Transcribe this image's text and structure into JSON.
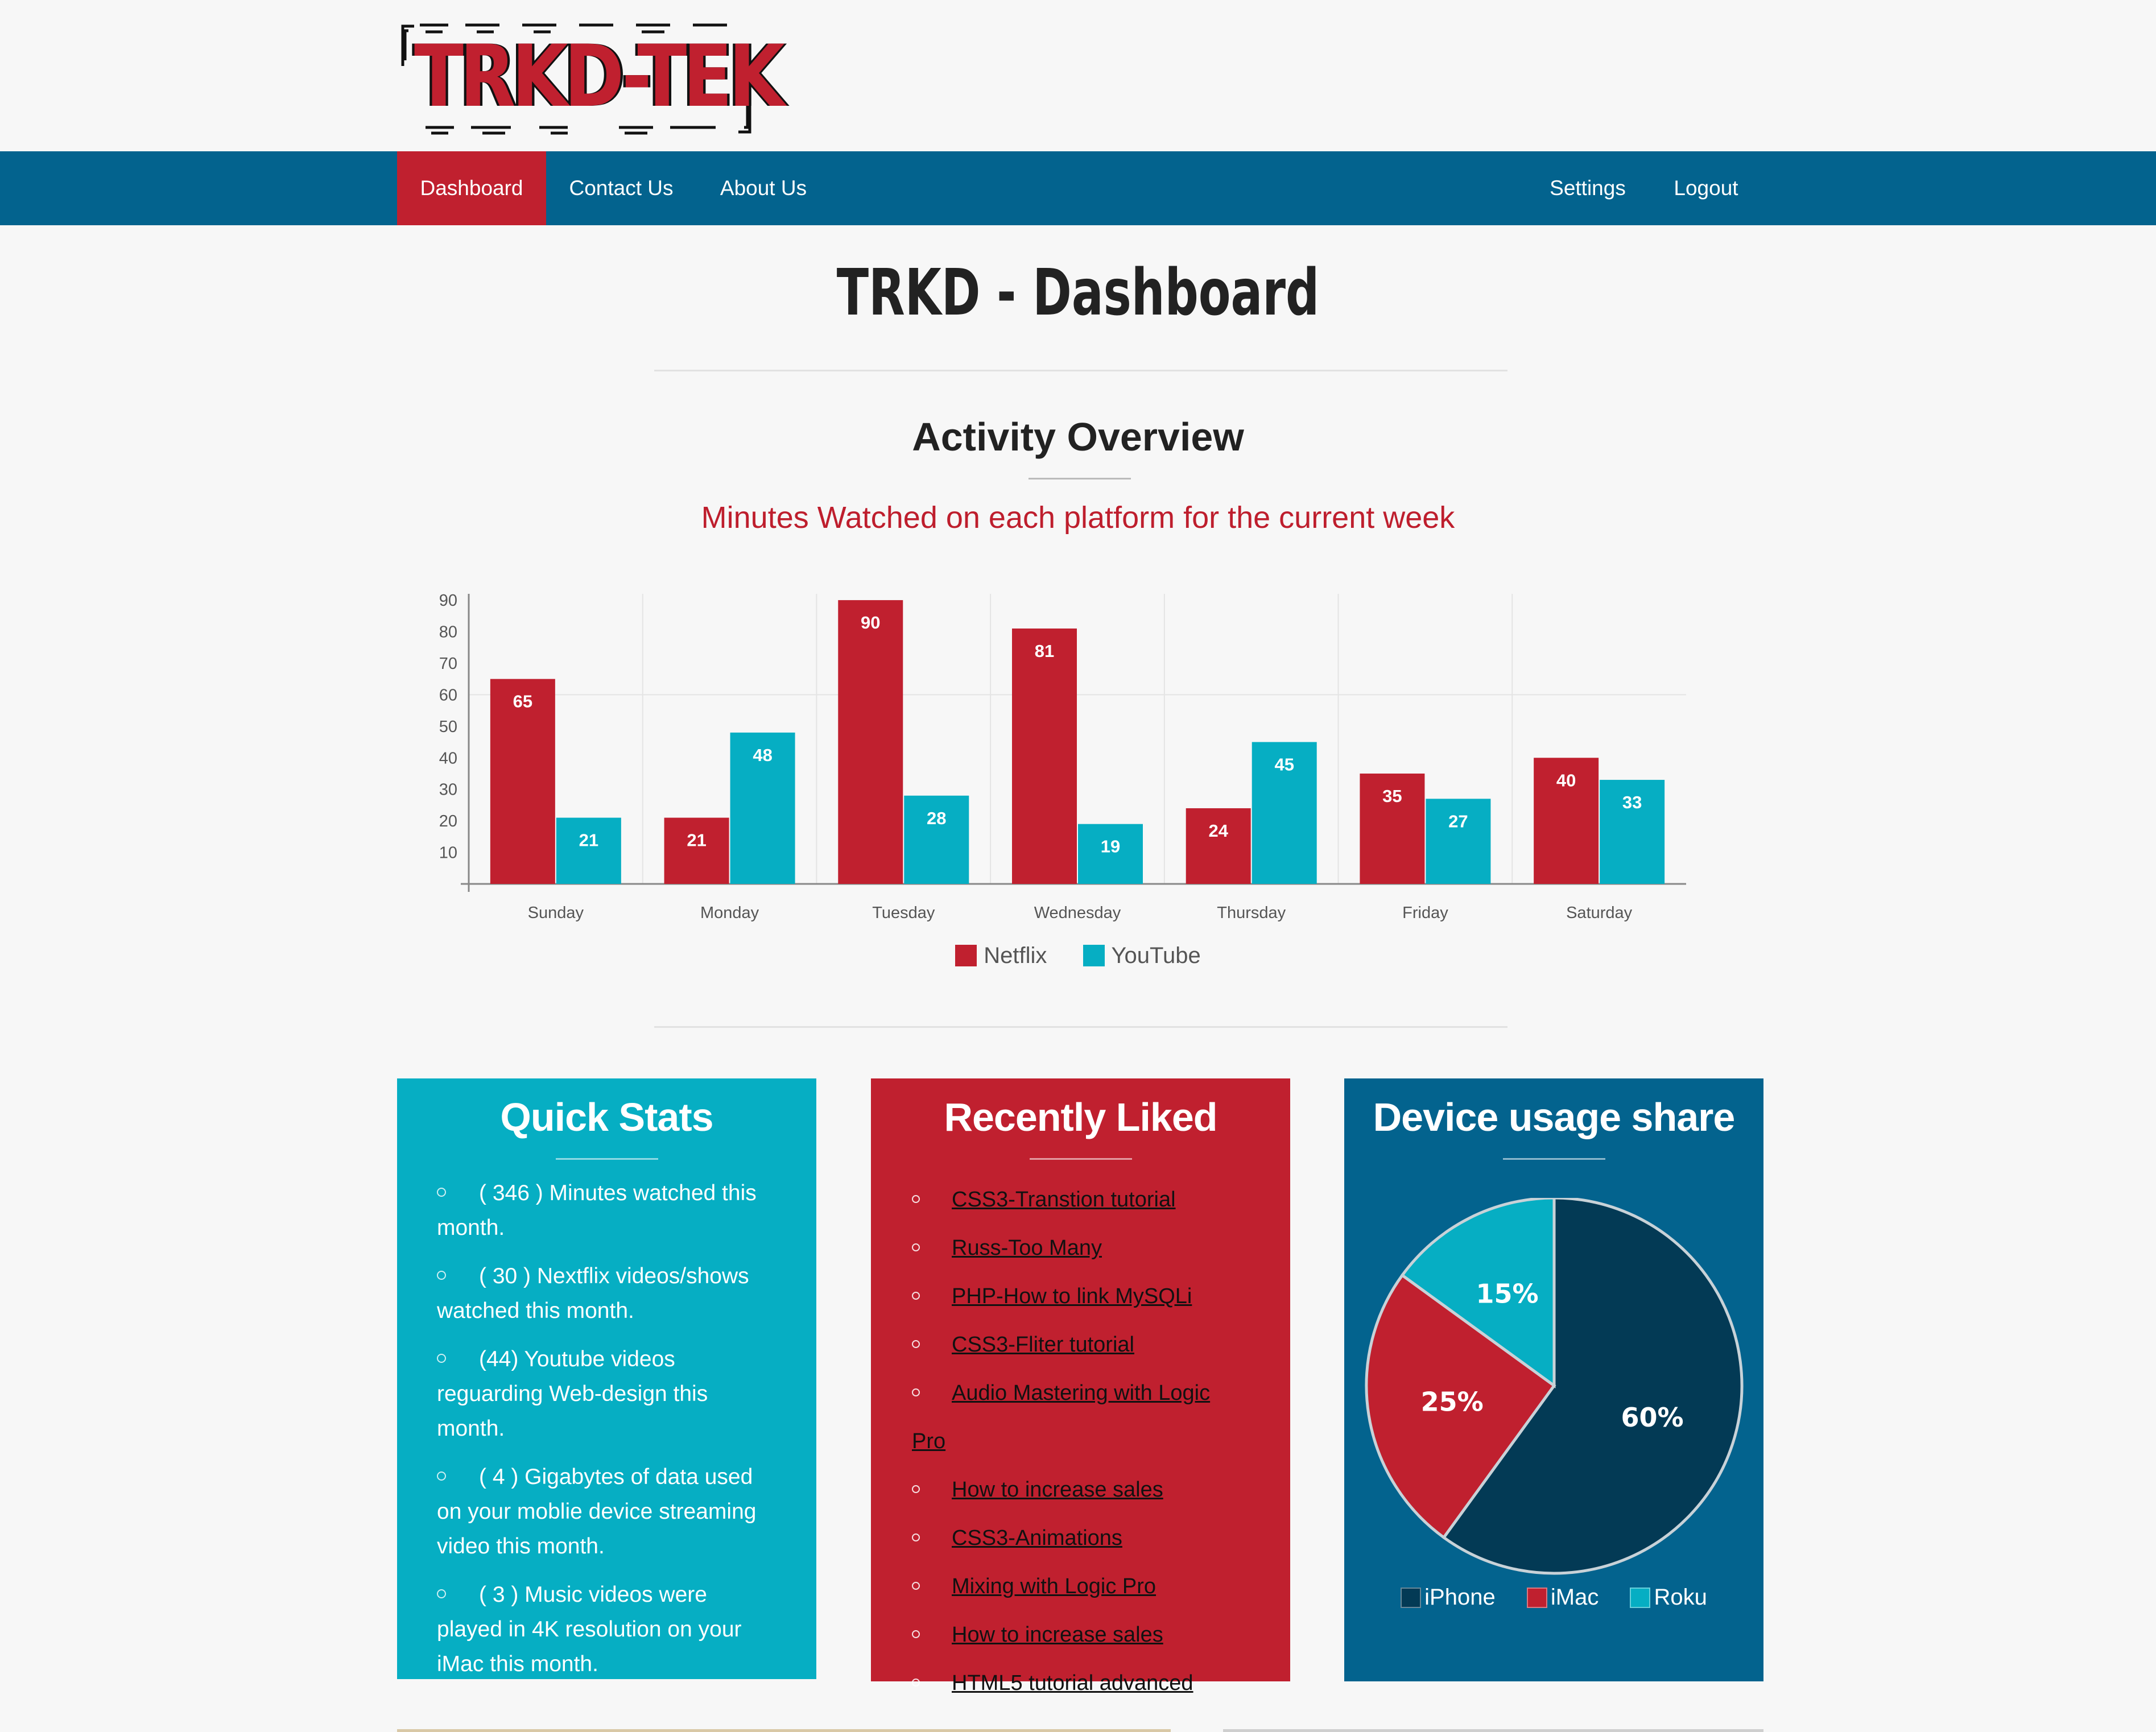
{
  "brand": {
    "logo_text": "TRKD-TEK"
  },
  "nav": {
    "left": [
      "Dashboard",
      "Contact Us",
      "About Us"
    ],
    "right": [
      "Settings",
      "Logout"
    ],
    "active": "Dashboard"
  },
  "page": {
    "title": "TRKD - Dashboard",
    "section_title": "Activity Overview",
    "chart_subtitle": "Minutes Watched on each platform for the current week"
  },
  "colors": {
    "nav": "#03638e",
    "accent_red": "#c0202f",
    "accent_teal": "#06aec3",
    "navy": "#033a55"
  },
  "chart_data": [
    {
      "type": "bar",
      "title": "Minutes Watched on each platform for the current week",
      "categories": [
        "Sunday",
        "Monday",
        "Tuesday",
        "Wednesday",
        "Thursday",
        "Friday",
        "Saturday"
      ],
      "series": [
        {
          "name": "Netflix",
          "values": [
            65,
            21,
            90,
            81,
            24,
            35,
            40
          ],
          "color": "#c0202f"
        },
        {
          "name": "YouTube",
          "values": [
            21,
            48,
            28,
            19,
            45,
            27,
            33
          ],
          "color": "#06aec3"
        }
      ],
      "yticks": [
        10,
        20,
        30,
        40,
        50,
        60,
        70,
        80,
        90
      ],
      "ylim": [
        0,
        92
      ],
      "legend": "bottom-center",
      "data_labels": true
    },
    {
      "type": "pie",
      "title": "Device usage share",
      "slices": [
        {
          "name": "iPhone",
          "value": 60,
          "label": "60%",
          "color": "#033a55"
        },
        {
          "name": "iMac",
          "value": 25,
          "label": "25%",
          "color": "#c0202f"
        },
        {
          "name": "Roku",
          "value": 15,
          "label": "15%",
          "color": "#06aec3"
        }
      ],
      "legend": "bottom-center"
    }
  ],
  "quick_stats": {
    "title": "Quick Stats",
    "items": [
      "( 346 ) Minutes watched this month.",
      "( 30 ) Nextflix videos/shows watched this month.",
      "(44) Youtube videos reguarding Web-design this month.",
      "( 4 ) Gigabytes of data used on your moblie device streaming video this month.",
      "( 3 ) Music videos were played in 4K resolution on your iMac this month."
    ]
  },
  "recently_liked": {
    "title": "Recently Liked",
    "items": [
      "CSS3-Transtion tutorial",
      "Russ-Too Many",
      "PHP-How to link MySQLi",
      "CSS3-Fliter tutorial",
      "Audio Mastering with Logic Pro",
      "How to increase sales",
      "CSS3-Animations",
      "Mixing with Logic Pro",
      "How to increase sales",
      "HTML5 tutorial advanced"
    ]
  },
  "device_usage": {
    "title": "Device usage share"
  }
}
